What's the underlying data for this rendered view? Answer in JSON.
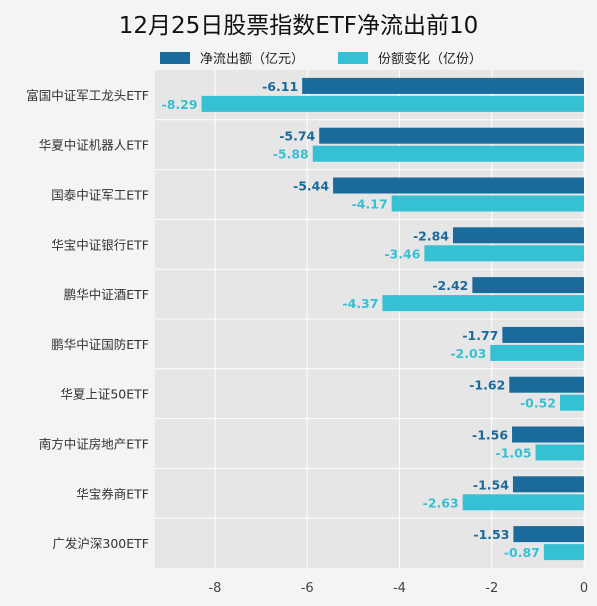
{
  "title": "12月25日股票指数ETF净流出前10",
  "legend": {
    "series1": "净流出额（亿元）",
    "series2": "份额变化（亿份）"
  },
  "colors": {
    "series1": "#1a6b9c",
    "series2": "#35c1d3",
    "plot_bg": "#e6e6e6",
    "page_bg": "#f4f4f4"
  },
  "chart_data": {
    "type": "bar",
    "orientation": "horizontal",
    "title": "12月25日股票指数ETF净流出前10",
    "categories": [
      "富国中证军工龙头ETF",
      "华夏中证机器人ETF",
      "国泰中证军工ETF",
      "华宝中证银行ETF",
      "鹏华中证酒ETF",
      "鹏华中证国防ETF",
      "华夏上证50ETF",
      "南方中证房地产ETF",
      "华宝券商ETF",
      "广发沪深300ETF"
    ],
    "series": [
      {
        "name": "净流出额（亿元）",
        "values": [
          -6.11,
          -5.74,
          -5.44,
          -2.84,
          -2.42,
          -1.77,
          -1.62,
          -1.56,
          -1.54,
          -1.53
        ],
        "labels": [
          "-6.11",
          "-5.74",
          "-5.44",
          "-2.84",
          "-2.42",
          "-1.77",
          "-1.62",
          "-1.56",
          "-1.54",
          "-1.53"
        ]
      },
      {
        "name": "份额变化（亿份）",
        "values": [
          -8.29,
          -5.88,
          -4.17,
          -3.46,
          -4.37,
          -2.03,
          -0.52,
          -1.05,
          -2.63,
          -0.87
        ],
        "labels": [
          "-8.29",
          "-5.88",
          "-4.17",
          "-3.46",
          "-4.37",
          "-2.03",
          "-0.52",
          "-1.05",
          "-2.63",
          "-0.87"
        ]
      }
    ],
    "xlim": [
      -9.3,
      0
    ],
    "xticks": [
      -8,
      -6,
      -4,
      -2,
      0
    ],
    "xtick_labels": [
      "-8",
      "-6",
      "-4",
      "-2",
      "0"
    ],
    "grid": true,
    "legend_position": "top"
  }
}
